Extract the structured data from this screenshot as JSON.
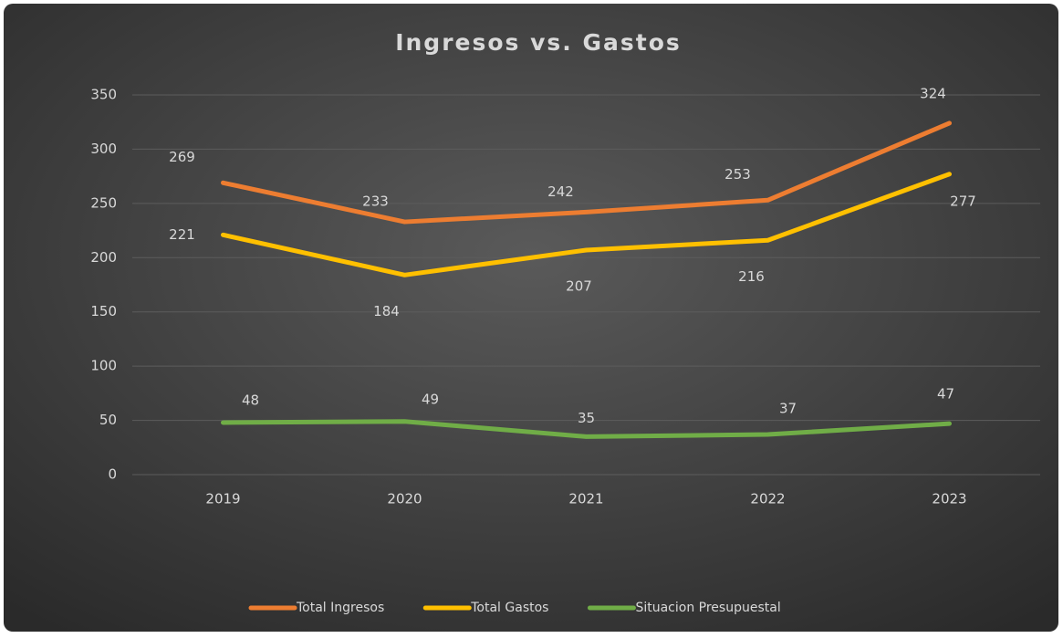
{
  "chart_data": {
    "type": "line",
    "title": "Ingresos vs. Gastos",
    "categories": [
      "2019",
      "2020",
      "2021",
      "2022",
      "2023"
    ],
    "series": [
      {
        "name": "Total Ingresos",
        "color": "#ed7d31",
        "values": [
          269,
          233,
          242,
          253,
          324
        ]
      },
      {
        "name": "Total Gastos",
        "color": "#ffc000",
        "values": [
          221,
          184,
          207,
          216,
          277
        ]
      },
      {
        "name": "Situacion Presupuestal",
        "color": "#70ad47",
        "values": [
          48,
          49,
          35,
          37,
          47
        ]
      }
    ],
    "ylim": [
      0,
      350
    ],
    "yticks": [
      0,
      50,
      100,
      150,
      200,
      250,
      300,
      350
    ],
    "grid": true,
    "legend": "bottom"
  }
}
